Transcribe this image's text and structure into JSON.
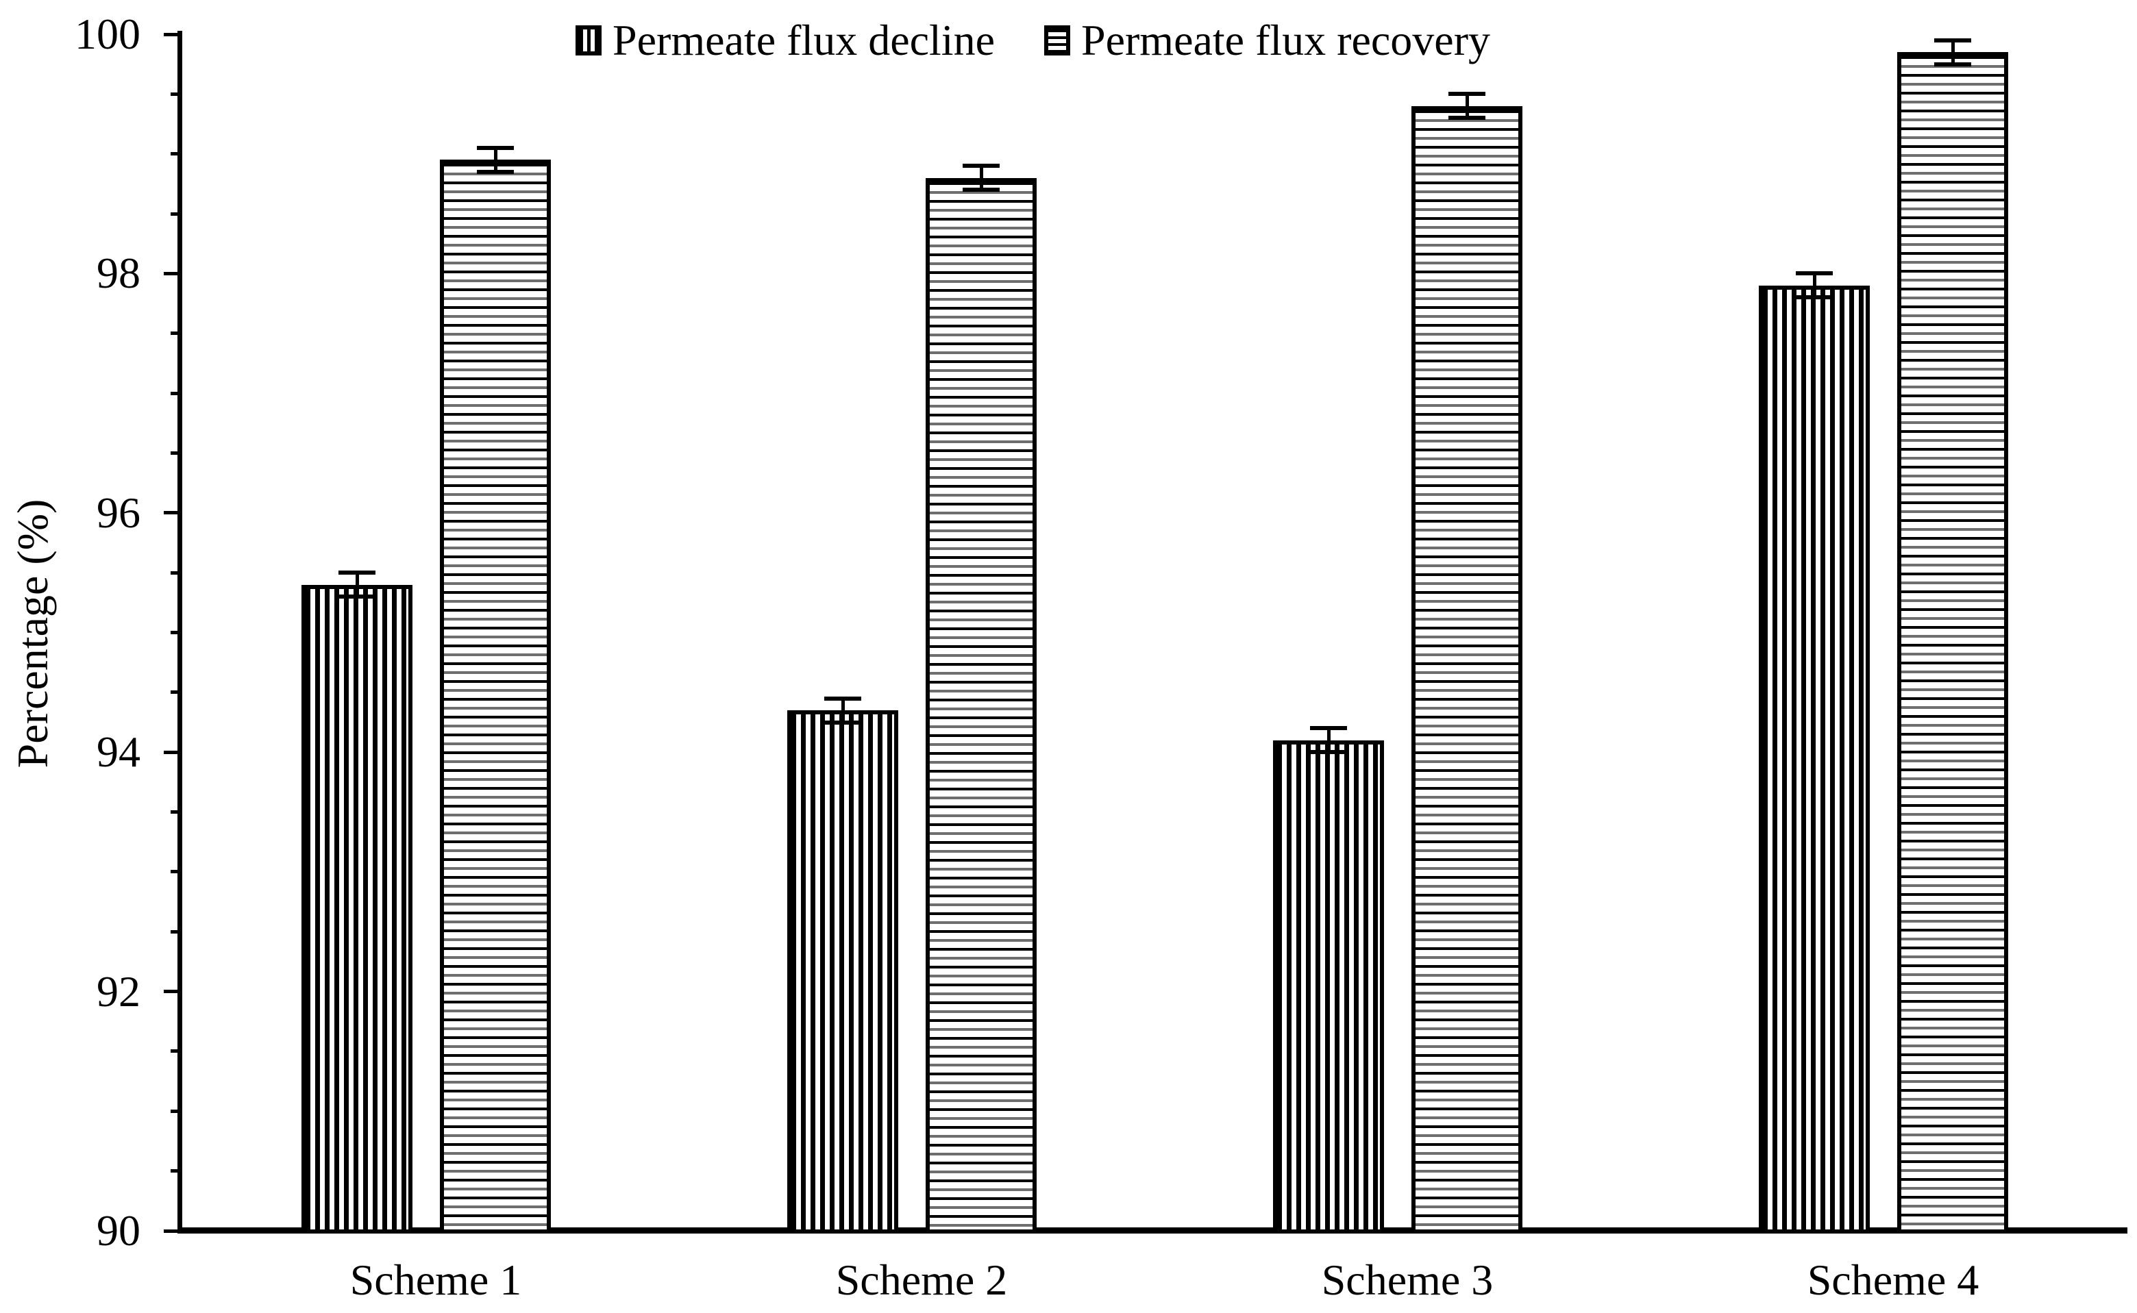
{
  "chart_data": {
    "type": "bar",
    "categories": [
      "Scheme 1",
      "Scheme 2",
      "Scheme 3",
      "Scheme 4"
    ],
    "series": [
      {
        "name": "Permeate flux decline",
        "pattern": "vertical-stripes",
        "values": [
          95.4,
          94.35,
          94.1,
          97.9
        ],
        "errors": [
          0.1,
          0.1,
          0.1,
          0.1
        ]
      },
      {
        "name": "Permeate flux recovery",
        "pattern": "horizontal-stripes",
        "values": [
          98.95,
          98.8,
          99.4,
          99.85
        ],
        "errors": [
          0.1,
          0.1,
          0.1,
          0.1
        ]
      }
    ],
    "title": "",
    "xlabel": "",
    "ylabel": "Percentage (%)",
    "ylim": [
      90,
      100
    ],
    "y_major_ticks": [
      90,
      92,
      94,
      96,
      98,
      100
    ],
    "y_minor_step": 0.5,
    "grid": false,
    "legend_position": "top-center",
    "error_bars": true,
    "colors": {
      "foreground": "#000000",
      "background": "#ffffff"
    }
  }
}
